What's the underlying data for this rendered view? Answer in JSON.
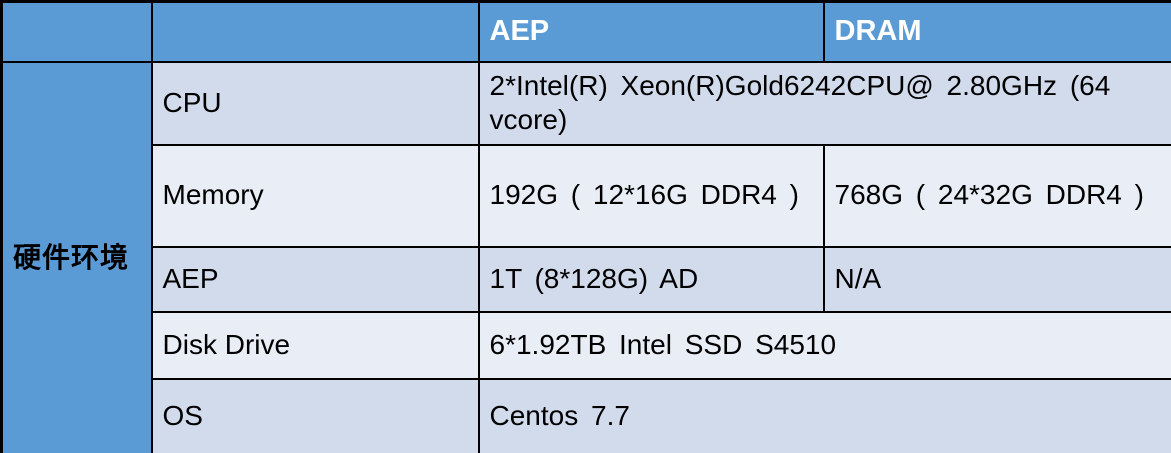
{
  "colors": {
    "header_bg": "#5B9BD5",
    "band_dark": "#D2DBEC",
    "band_light": "#E9EDF6",
    "border": "#000000",
    "header_text": "#FFFFFF",
    "body_text": "#000000"
  },
  "table": {
    "columns": [
      "",
      "",
      "AEP",
      "DRAM"
    ],
    "group_label": "硬件环境",
    "rows": [
      {
        "label": "CPU",
        "values": [
          "2*Intel(R) Xeon(R)Gold6242CPU@ 2.80GHz (64 vcore)"
        ]
      },
      {
        "label": "Memory",
        "values": [
          "192G ( 12*16G DDR4 )",
          "768G ( 24*32G DDR4 )"
        ]
      },
      {
        "label": "AEP",
        "values": [
          "1T (8*128G) AD",
          "N/A"
        ]
      },
      {
        "label": "Disk Drive",
        "values": [
          "6*1.92TB Intel SSD S4510"
        ]
      },
      {
        "label": "OS",
        "values": [
          "Centos 7.7"
        ]
      }
    ]
  }
}
